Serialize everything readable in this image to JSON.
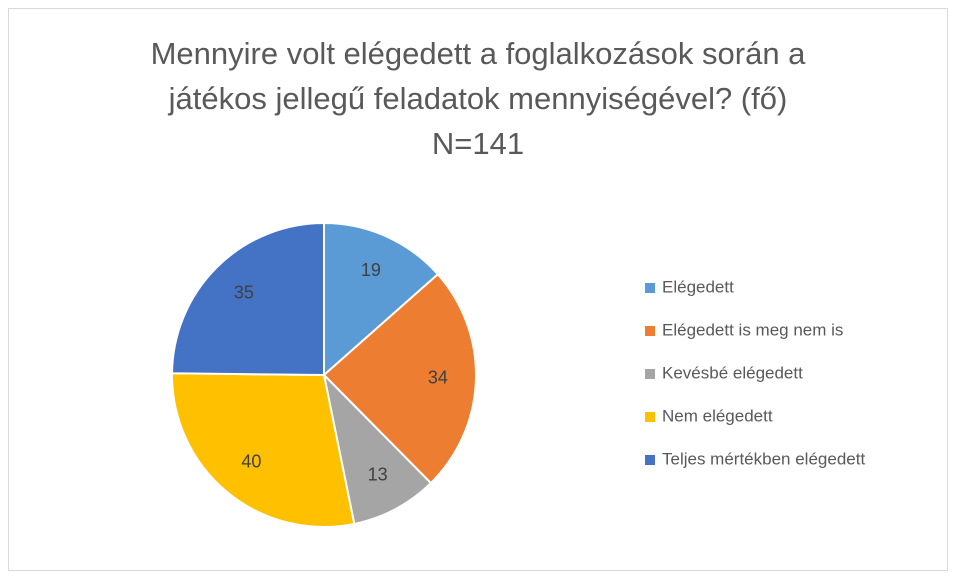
{
  "chart_data": {
    "type": "pie",
    "title": [
      "Mennyire volt elégedett a foglalkozások során a",
      "játékos jellegű feladatok mennyiségével? (fő)",
      "N=141"
    ],
    "categories": [
      "Elégedett",
      "Elégedett is meg nem is",
      "Kevésbé elégedett",
      "Nem elégedett",
      "Teljes mértékben elégedett"
    ],
    "values": [
      19,
      34,
      13,
      40,
      35
    ],
    "colors": [
      "#5b9bd5",
      "#ed7d31",
      "#a5a5a5",
      "#ffc000",
      "#4472c4"
    ],
    "legend": "right"
  }
}
